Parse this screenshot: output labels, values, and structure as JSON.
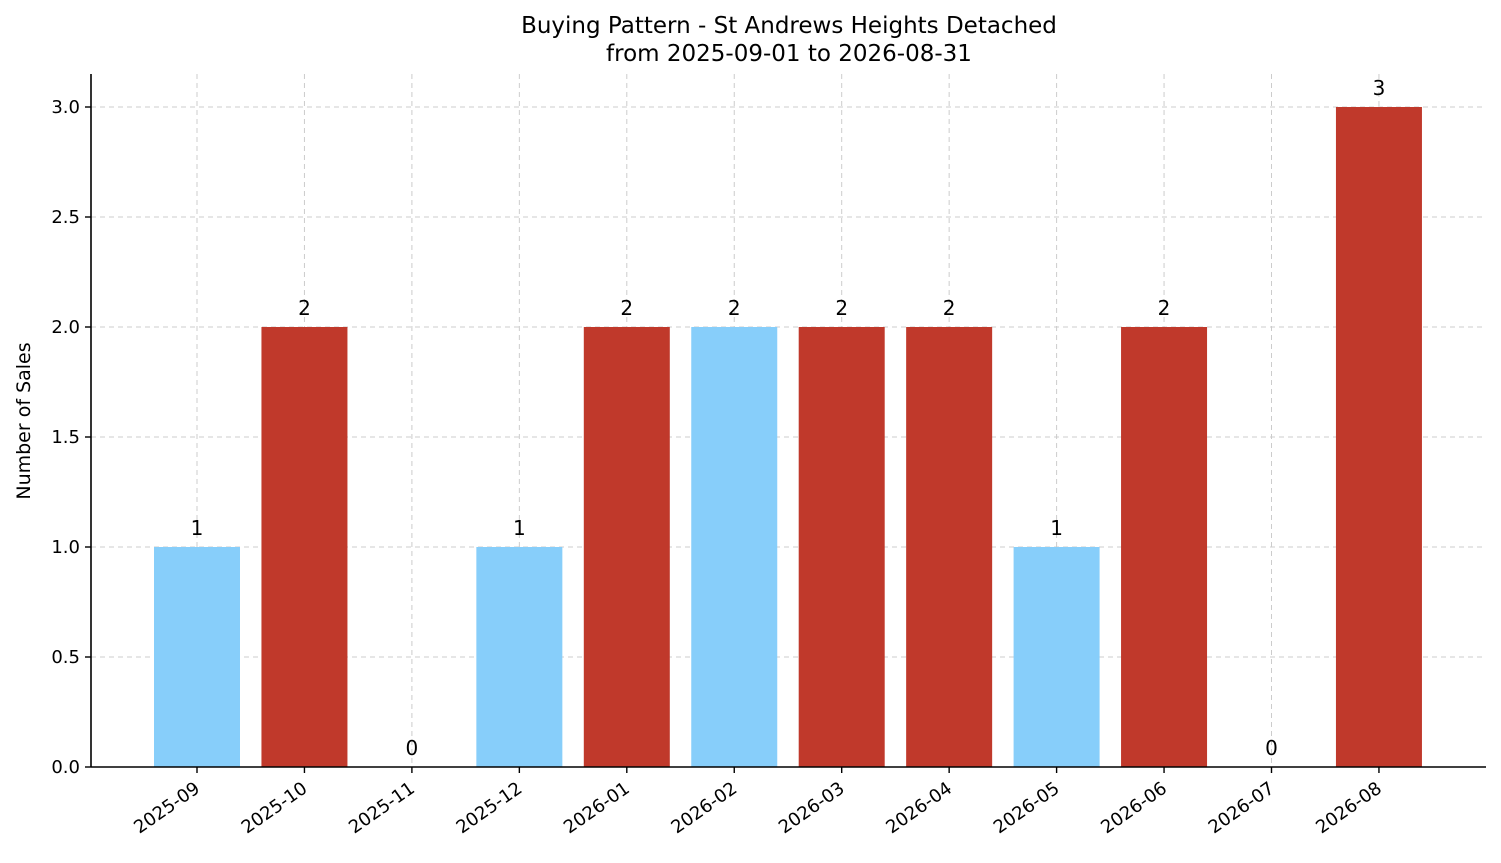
{
  "chart_data": {
    "type": "bar",
    "title": "Buying Pattern - St Andrews Heights Detached",
    "subtitle": "from 2025-09-01 to 2026-08-31",
    "xlabel": "",
    "ylabel": "Number of Sales",
    "ylim": [
      0,
      3.15
    ],
    "yticks": [
      "0.0",
      "0.5",
      "1.0",
      "1.5",
      "2.0",
      "2.5",
      "3.0"
    ],
    "grid": true,
    "categories": [
      "2025-09",
      "2025-10",
      "2025-11",
      "2025-12",
      "2026-01",
      "2026-02",
      "2026-03",
      "2026-04",
      "2026-05",
      "2026-06",
      "2026-07",
      "2026-08"
    ],
    "values": [
      1,
      2,
      0,
      1,
      2,
      2,
      2,
      2,
      1,
      2,
      0,
      3
    ],
    "data_labels": [
      "1",
      "2",
      "0",
      "1",
      "2",
      "2",
      "2",
      "2",
      "1",
      "2",
      "0",
      "3"
    ],
    "bar_colors": [
      "#87cefa",
      "#c0392b",
      "#c0392b",
      "#87cefa",
      "#c0392b",
      "#87cefa",
      "#c0392b",
      "#c0392b",
      "#87cefa",
      "#c0392b",
      "#c0392b",
      "#c0392b"
    ]
  }
}
